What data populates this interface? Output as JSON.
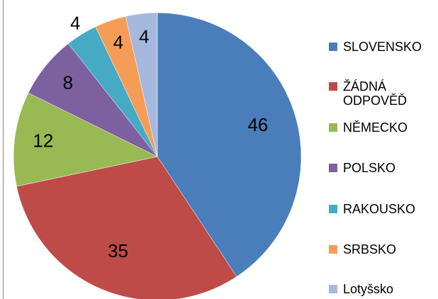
{
  "chart_data": {
    "type": "pie",
    "categories": [
      "SLOVENSKO",
      "ŽÁDNÁ ODPOVĚĎ",
      "NĚMECKO",
      "POLSKO",
      "RAKOUSKO",
      "SRBSKO",
      "Lotyšsko"
    ],
    "values": [
      46,
      35,
      12,
      8,
      4,
      4,
      4
    ],
    "colors": [
      "#4a7ebb",
      "#be4b48",
      "#98b954",
      "#7d60a0",
      "#46aac5",
      "#f59d56",
      "#a5b9de"
    ],
    "legend": "right"
  }
}
